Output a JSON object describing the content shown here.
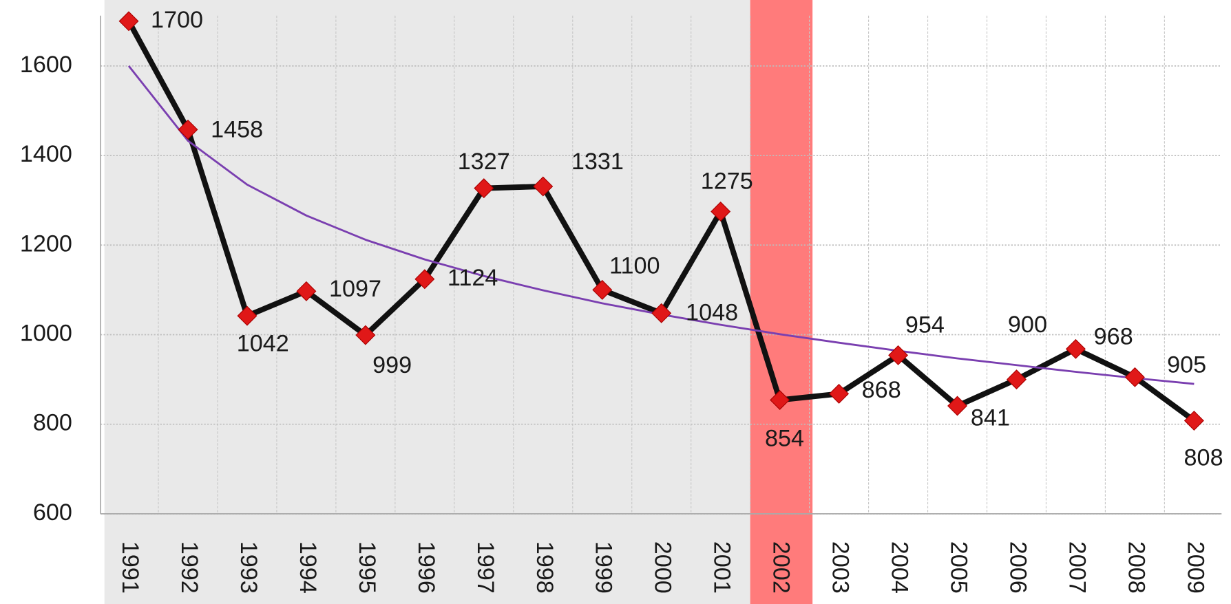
{
  "chart_data": {
    "type": "line",
    "categories": [
      "1991",
      "1992",
      "1993",
      "1994",
      "1995",
      "1996",
      "1997",
      "1998",
      "1999",
      "2000",
      "2001",
      "2002",
      "2003",
      "2004",
      "2005",
      "2006",
      "2007",
      "2008",
      "2009"
    ],
    "series": [
      {
        "color": "#111111",
        "marker_color": "#e01818",
        "values": [
          1700,
          1458,
          1042,
          1097,
          999,
          1124,
          1327,
          1331,
          1100,
          1048,
          1275,
          854,
          868,
          954,
          841,
          900,
          968,
          905,
          808
        ]
      },
      {
        "color": "#7a3fb0",
        "values": [
          1600,
          1433,
          1335,
          1266,
          1212,
          1168,
          1131,
          1099,
          1070,
          1045,
          1022,
          1001,
          982,
          964,
          947,
          932,
          917,
          903,
          890
        ]
      }
    ],
    "ylim": [
      600,
      1700
    ],
    "yticks": [
      600,
      800,
      1000,
      1200,
      1400,
      1600
    ],
    "grid": true
  }
}
